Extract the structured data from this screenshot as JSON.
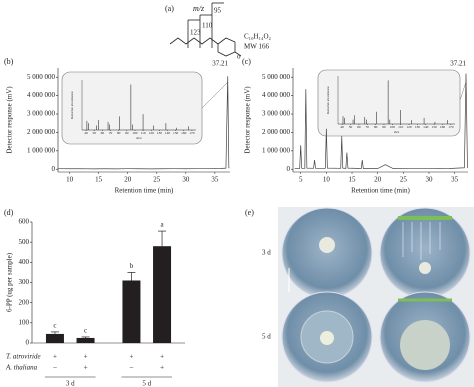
{
  "panel_labels": [
    "(a)",
    "(b)",
    "(c)",
    "(d)",
    "(e)"
  ],
  "structure": {
    "axis_label": "m/z",
    "fragments": [
      "123",
      "110",
      "95"
    ],
    "formula": "C₁₀H₁₄O₂",
    "mw": "MW 166"
  },
  "chart_data": [
    {
      "type": "line",
      "x_label": "Retention time (min)",
      "y_label": "Detector response (mV)",
      "peak_label": "37.21",
      "color": "#444",
      "x": [
        8,
        10,
        12,
        14,
        16,
        18,
        20,
        22,
        24,
        26,
        28,
        30,
        32,
        34,
        36,
        36.9,
        37.21,
        37.4,
        37.5
      ],
      "values": [
        30000,
        25000,
        30000,
        20000,
        25000,
        20000,
        30000,
        25000,
        20000,
        25000,
        30000,
        25000,
        30000,
        30000,
        40000,
        60000,
        5050000,
        80000,
        60000
      ],
      "xlim": [
        8,
        37.6
      ],
      "ylim": [
        -150000,
        5500000
      ],
      "xticks": [
        10,
        15,
        20,
        25,
        30,
        35
      ],
      "yticks": [
        0,
        {
          "value": 1000000,
          "label": "1 000 000"
        },
        {
          "value": 2000000,
          "label": "2 000 000"
        },
        {
          "value": 3000000,
          "label": "3 000 000"
        },
        {
          "value": 4000000,
          "label": "4 000 000"
        },
        {
          "value": 5000000,
          "label": "5 000 000"
        }
      ]
    },
    {
      "type": "line",
      "x_label": "Retention time (min)",
      "y_label": "Detector response (mV)",
      "peak_label": "37.21",
      "color": "#444",
      "x": [
        3.8,
        4.8,
        5,
        5.2,
        5.8,
        6,
        6.2,
        7.5,
        7.7,
        7.9,
        9.8,
        10,
        10.2,
        12.8,
        13,
        13.2,
        13.8,
        14,
        14.2,
        16.8,
        17,
        17.2,
        20,
        21.5,
        23,
        26,
        30,
        34,
        36.9,
        37.21,
        37.5
      ],
      "values": [
        30000,
        40000,
        1300000,
        50000,
        50000,
        4350000,
        60000,
        50000,
        500000,
        50000,
        50000,
        2200000,
        60000,
        50000,
        1800000,
        60000,
        50000,
        900000,
        60000,
        40000,
        500000,
        40000,
        40000,
        250000,
        40000,
        30000,
        30000,
        40000,
        80000,
        5200000,
        70000
      ],
      "xlim": [
        3.5,
        37.6
      ],
      "ylim": [
        -150000,
        5500000
      ],
      "xticks": [
        5,
        10,
        15,
        20,
        25,
        30,
        35
      ],
      "yticks": [
        0,
        {
          "value": 1000000,
          "label": "1 000 000"
        },
        {
          "value": 2000000,
          "label": "2 000 000"
        },
        {
          "value": 3000000,
          "label": "3 000 000"
        },
        {
          "value": 4000000,
          "label": "4 000 000"
        },
        {
          "value": 5000000,
          "label": "5 000 000"
        }
      ]
    },
    {
      "type": "stem",
      "x_label": "m/z",
      "y_label": "Relative abundance",
      "color": "#333",
      "x": [
        41,
        43,
        53,
        55,
        67,
        69,
        81,
        95,
        97,
        110,
        123,
        138,
        151,
        166
      ],
      "values": [
        20,
        15,
        10,
        22,
        18,
        12,
        30,
        100,
        12,
        35,
        10,
        15,
        5,
        8
      ],
      "xlim": [
        35,
        175
      ],
      "ylim": [
        0,
        110
      ],
      "xticks": [
        40,
        50,
        60,
        70,
        80,
        90,
        100,
        110,
        120,
        130,
        140,
        150,
        160,
        170
      ]
    },
    {
      "type": "stem",
      "x_label": "m/z",
      "y_label": "Relative abundance",
      "color": "#333",
      "x": [
        41,
        43,
        53,
        55,
        67,
        69,
        81,
        95,
        97,
        110,
        123,
        138,
        151,
        166
      ],
      "values": [
        18,
        14,
        10,
        20,
        16,
        10,
        28,
        100,
        10,
        32,
        9,
        14,
        5,
        9
      ],
      "xlim": [
        35,
        175
      ],
      "ylim": [
        0,
        110
      ],
      "xticks": [
        40,
        50,
        60,
        70,
        80,
        90,
        100,
        110,
        120,
        130,
        140,
        150,
        160,
        170
      ]
    },
    {
      "type": "bar",
      "y_label": "6-PP (ug per sample)",
      "color": "#231f20",
      "values": [
        45,
        25,
        310,
        480
      ],
      "errors": [
        10,
        5,
        40,
        75
      ],
      "annotations": [
        "c",
        "c",
        "b",
        "a"
      ],
      "ylim": [
        0,
        600
      ],
      "yticks": [
        0,
        100,
        200,
        300,
        400,
        500,
        600
      ],
      "conditions": [
        {
          "name": "T. atroviride",
          "signs": [
            "+",
            "+",
            "+",
            "+"
          ]
        },
        {
          "name": "A. thaliana",
          "signs": [
            "–",
            "+",
            "–",
            "+"
          ]
        }
      ],
      "groups": [
        "3 d",
        "5 d"
      ]
    }
  ],
  "plates": {
    "rows": [
      "3 d",
      "5 d"
    ]
  }
}
